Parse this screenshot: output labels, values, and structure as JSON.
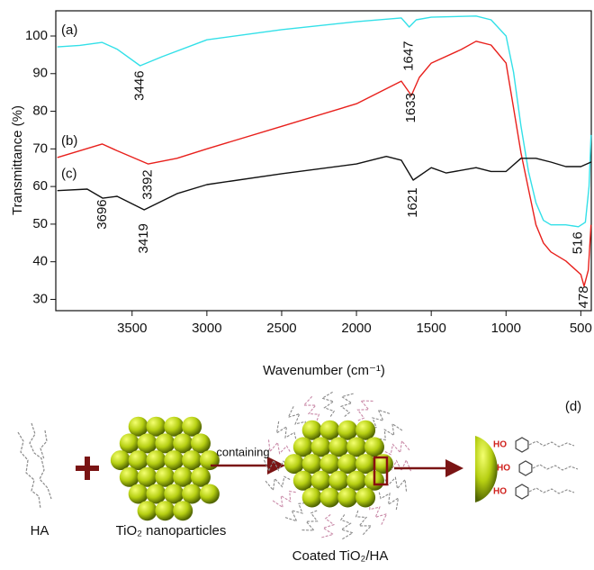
{
  "chart_data": {
    "type": "line",
    "xlabel": "Wavenumber (cm⁻¹)",
    "ylabel": "Transmittance (%)",
    "xlim": [
      4010,
      430
    ],
    "ylim": [
      27,
      106.7
    ],
    "xticks": [
      3500,
      3000,
      2500,
      2000,
      1500,
      1000,
      500
    ],
    "yticks": [
      30,
      40,
      50,
      60,
      70,
      80,
      90,
      100
    ],
    "grid": false,
    "series": [
      {
        "name": "(a)",
        "color": "#33e0e8",
        "x": [
          4000,
          3850,
          3700,
          3600,
          3446,
          3300,
          3000,
          2500,
          2000,
          1700,
          1647,
          1600,
          1500,
          1200,
          1100,
          1000,
          950,
          900,
          850,
          800,
          750,
          700,
          600,
          516,
          470,
          445,
          432
        ],
        "values": [
          97.1,
          97.5,
          98.3,
          96.5,
          92.1,
          94.5,
          99,
          101.7,
          103.8,
          104.8,
          102.4,
          104.3,
          105,
          105.3,
          104.3,
          100,
          90.4,
          76,
          64,
          55.7,
          51,
          49.8,
          49.8,
          49.3,
          50.5,
          60,
          73.7
        ]
      },
      {
        "name": "(b)",
        "color": "#e8201c",
        "x": [
          4000,
          3850,
          3700,
          3600,
          3392,
          3200,
          3000,
          2500,
          2000,
          1700,
          1633,
          1580,
          1500,
          1300,
          1200,
          1100,
          1000,
          950,
          900,
          850,
          800,
          750,
          700,
          600,
          500,
          478,
          450,
          432
        ],
        "values": [
          67.7,
          69.5,
          71.3,
          69.5,
          66,
          67.5,
          70,
          76,
          82,
          88,
          84.2,
          89,
          92.8,
          96.4,
          98.6,
          97.6,
          92.8,
          80.9,
          68.9,
          59.3,
          49.8,
          45,
          42.6,
          40.2,
          36.6,
          33.5,
          37.8,
          49.8
        ]
      },
      {
        "name": "(c)",
        "color": "#111111",
        "x": [
          4000,
          3800,
          3696,
          3600,
          3419,
          3200,
          3000,
          2500,
          2000,
          1800,
          1700,
          1621,
          1500,
          1400,
          1200,
          1100,
          1000,
          900,
          800,
          700,
          600,
          500,
          432
        ],
        "values": [
          58.9,
          59.3,
          56.9,
          57.4,
          53.8,
          58.1,
          60.5,
          63.4,
          66,
          68,
          67,
          61.7,
          65,
          63.6,
          65,
          64,
          64,
          67.5,
          67.5,
          66.5,
          65.3,
          65.3,
          66.5
        ]
      }
    ],
    "annotations": [
      {
        "text": "3446",
        "x": 3446,
        "y": 86.8
      },
      {
        "text": "1647",
        "x": 1647,
        "y": 94.7
      },
      {
        "text": "1633",
        "x": 1633,
        "y": 80.9
      },
      {
        "text": "3392",
        "x": 3392,
        "y": 60.5
      },
      {
        "text": "3696",
        "x": 3696,
        "y": 52.6
      },
      {
        "text": "3419",
        "x": 3419,
        "y": 46.2
      },
      {
        "text": "1621",
        "x": 1621,
        "y": 55.7
      },
      {
        "text": "516",
        "x": 516,
        "y": 45
      },
      {
        "text": "478",
        "x": 478,
        "y": 30.6
      }
    ]
  },
  "diagram": {
    "label": "(d)",
    "ha": "HA",
    "nanoparticles": "TiO₂ nanoparticles",
    "arrow_label": "containing",
    "coated": "Coated TiO₂/HA",
    "hydroxyls": [
      "HO",
      "HO",
      "HO"
    ]
  }
}
